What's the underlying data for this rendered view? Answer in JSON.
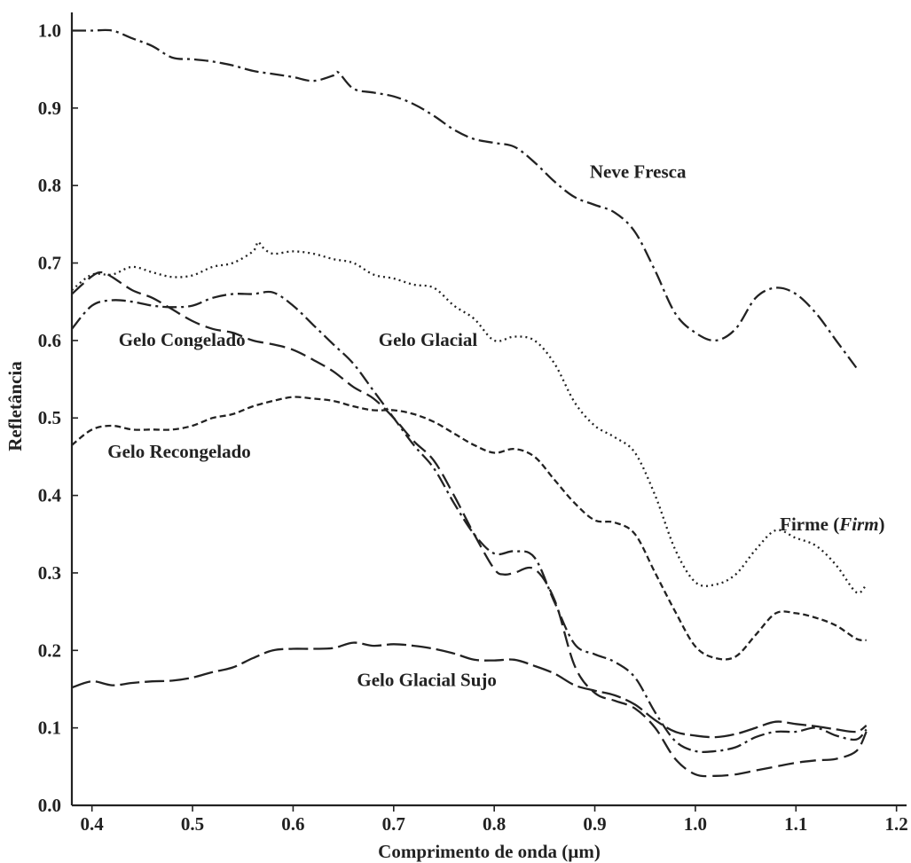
{
  "chart_data": {
    "type": "line",
    "title": "",
    "xlabel": "Comprimento de onda  (µm)",
    "ylabel": "Refletância",
    "xlim": [
      0.38,
      1.21
    ],
    "ylim": [
      0.0,
      1.02
    ],
    "x_ticks": [
      0.4,
      0.5,
      0.6,
      0.7,
      0.8,
      0.9,
      1.0,
      1.1,
      1.2
    ],
    "x_tick_labels": [
      "0.4",
      "0.5",
      "0.6",
      "0.7",
      "0.8",
      "0.9",
      "1.0",
      "1.1",
      "1.2"
    ],
    "y_ticks": [
      0.0,
      0.1,
      0.2,
      0.3,
      0.4,
      0.5,
      0.6,
      0.7,
      0.8,
      0.9,
      1.0
    ],
    "y_tick_labels": [
      "0.0",
      "0.1",
      "0.2",
      "0.3",
      "0.4",
      "0.5",
      "0.6",
      "0.7",
      "0.8",
      "0.9",
      "1.0"
    ],
    "grid": false,
    "legend": "none (inline labels)",
    "series": [
      {
        "name": "Neve Fresca",
        "label_text": "Neve Fresca",
        "label_pos": [
          0.895,
          0.81
        ],
        "dash": "16 5 3 5",
        "x": [
          0.38,
          0.4,
          0.42,
          0.44,
          0.46,
          0.48,
          0.5,
          0.52,
          0.54,
          0.56,
          0.58,
          0.6,
          0.62,
          0.64,
          0.645,
          0.66,
          0.68,
          0.7,
          0.72,
          0.74,
          0.76,
          0.78,
          0.8,
          0.82,
          0.84,
          0.86,
          0.88,
          0.9,
          0.92,
          0.94,
          0.96,
          0.98,
          1.0,
          1.02,
          1.04,
          1.06,
          1.08,
          1.1,
          1.12,
          1.14,
          1.16
        ],
        "y": [
          1.0,
          1.0,
          1.0,
          0.99,
          0.98,
          0.965,
          0.963,
          0.96,
          0.955,
          0.948,
          0.944,
          0.94,
          0.935,
          0.942,
          0.946,
          0.925,
          0.92,
          0.915,
          0.905,
          0.89,
          0.872,
          0.86,
          0.855,
          0.85,
          0.83,
          0.805,
          0.785,
          0.775,
          0.765,
          0.74,
          0.69,
          0.635,
          0.61,
          0.6,
          0.615,
          0.655,
          0.668,
          0.66,
          0.635,
          0.6,
          0.565
        ]
      },
      {
        "name": "Firme (Firm)",
        "label_text": "Firme (",
        "label_italic": "Firm",
        "label_end": ")",
        "label_pos": [
          1.084,
          0.355
        ],
        "dash": "2 4",
        "x": [
          0.38,
          0.4,
          0.42,
          0.44,
          0.46,
          0.48,
          0.5,
          0.52,
          0.54,
          0.56,
          0.565,
          0.57,
          0.58,
          0.6,
          0.62,
          0.64,
          0.66,
          0.68,
          0.7,
          0.72,
          0.74,
          0.76,
          0.78,
          0.8,
          0.82,
          0.84,
          0.86,
          0.88,
          0.9,
          0.92,
          0.94,
          0.96,
          0.98,
          1.0,
          1.02,
          1.04,
          1.06,
          1.08,
          1.1,
          1.12,
          1.14,
          1.16,
          1.17
        ],
        "y": [
          0.665,
          0.685,
          0.685,
          0.695,
          0.688,
          0.682,
          0.684,
          0.695,
          0.7,
          0.715,
          0.727,
          0.72,
          0.712,
          0.715,
          0.712,
          0.705,
          0.7,
          0.685,
          0.68,
          0.672,
          0.668,
          0.645,
          0.628,
          0.6,
          0.605,
          0.6,
          0.57,
          0.52,
          0.49,
          0.475,
          0.455,
          0.4,
          0.33,
          0.288,
          0.285,
          0.298,
          0.33,
          0.355,
          0.345,
          0.335,
          0.31,
          0.275,
          0.285
        ]
      },
      {
        "name": "Gelo Glacial",
        "label_text": "Gelo Glacial",
        "label_pos": [
          0.685,
          0.593
        ],
        "dash": "16 5 3 5",
        "x": [
          0.38,
          0.4,
          0.42,
          0.44,
          0.46,
          0.48,
          0.5,
          0.52,
          0.54,
          0.56,
          0.58,
          0.6,
          0.62,
          0.64,
          0.66,
          0.68,
          0.7,
          0.72,
          0.74,
          0.76,
          0.78,
          0.8,
          0.82,
          0.84,
          0.86,
          0.88,
          0.9,
          0.92,
          0.94,
          0.96,
          0.98,
          1.0,
          1.02,
          1.04,
          1.06,
          1.08,
          1.1,
          1.12,
          1.14,
          1.16,
          1.17
        ],
        "y": [
          0.615,
          0.645,
          0.652,
          0.65,
          0.645,
          0.643,
          0.645,
          0.655,
          0.66,
          0.66,
          0.662,
          0.645,
          0.62,
          0.595,
          0.57,
          0.535,
          0.5,
          0.465,
          0.435,
          0.39,
          0.35,
          0.325,
          0.328,
          0.32,
          0.262,
          0.208,
          0.195,
          0.185,
          0.165,
          0.12,
          0.083,
          0.07,
          0.07,
          0.075,
          0.088,
          0.095,
          0.095,
          0.1,
          0.09,
          0.085,
          0.098
        ]
      },
      {
        "name": "Gelo Congelado",
        "label_text": "Gelo Congelado",
        "label_pos": [
          0.4265,
          0.593
        ],
        "dash": "18 7",
        "x": [
          0.38,
          0.4,
          0.41,
          0.42,
          0.44,
          0.46,
          0.48,
          0.5,
          0.52,
          0.54,
          0.56,
          0.58,
          0.6,
          0.62,
          0.64,
          0.66,
          0.68,
          0.7,
          0.72,
          0.74,
          0.76,
          0.78,
          0.8,
          0.81,
          0.82,
          0.84,
          0.86,
          0.88,
          0.9,
          0.92,
          0.94,
          0.96,
          0.98,
          1.0,
          1.02,
          1.04,
          1.06,
          1.08,
          1.1,
          1.12,
          1.14,
          1.16,
          1.17
        ],
        "y": [
          0.66,
          0.683,
          0.688,
          0.682,
          0.665,
          0.655,
          0.64,
          0.625,
          0.615,
          0.61,
          0.6,
          0.595,
          0.588,
          0.575,
          0.56,
          0.54,
          0.525,
          0.5,
          0.47,
          0.445,
          0.4,
          0.35,
          0.305,
          0.298,
          0.3,
          0.305,
          0.265,
          0.18,
          0.145,
          0.135,
          0.125,
          0.1,
          0.06,
          0.04,
          0.038,
          0.04,
          0.045,
          0.05,
          0.055,
          0.058,
          0.06,
          0.07,
          0.095
        ]
      },
      {
        "name": "Gelo Recongelado",
        "label_text": "Gelo Recongelado",
        "label_pos": [
          0.4155,
          0.449
        ],
        "dash": "7 4",
        "x": [
          0.38,
          0.4,
          0.42,
          0.44,
          0.46,
          0.48,
          0.5,
          0.52,
          0.54,
          0.56,
          0.58,
          0.6,
          0.62,
          0.64,
          0.66,
          0.68,
          0.7,
          0.72,
          0.74,
          0.76,
          0.78,
          0.8,
          0.82,
          0.84,
          0.86,
          0.88,
          0.9,
          0.92,
          0.94,
          0.96,
          0.98,
          1.0,
          1.02,
          1.04,
          1.06,
          1.08,
          1.1,
          1.12,
          1.14,
          1.16,
          1.17
        ],
        "y": [
          0.465,
          0.485,
          0.49,
          0.485,
          0.485,
          0.485,
          0.49,
          0.5,
          0.505,
          0.515,
          0.522,
          0.527,
          0.525,
          0.522,
          0.515,
          0.51,
          0.51,
          0.505,
          0.495,
          0.48,
          0.465,
          0.455,
          0.46,
          0.45,
          0.42,
          0.39,
          0.368,
          0.365,
          0.35,
          0.3,
          0.25,
          0.205,
          0.19,
          0.192,
          0.22,
          0.248,
          0.248,
          0.242,
          0.232,
          0.215,
          0.213
        ]
      },
      {
        "name": "Gelo Glacial Sujo",
        "label_text": "Gelo Glacial Sujo",
        "label_pos": [
          0.6635,
          0.154
        ],
        "dash": "22 6",
        "x": [
          0.38,
          0.4,
          0.42,
          0.44,
          0.46,
          0.48,
          0.5,
          0.52,
          0.54,
          0.56,
          0.58,
          0.6,
          0.62,
          0.64,
          0.66,
          0.68,
          0.7,
          0.72,
          0.74,
          0.76,
          0.78,
          0.8,
          0.82,
          0.84,
          0.86,
          0.88,
          0.9,
          0.92,
          0.94,
          0.96,
          0.98,
          1.0,
          1.02,
          1.04,
          1.06,
          1.08,
          1.1,
          1.12,
          1.14,
          1.16,
          1.17
        ],
        "y": [
          0.152,
          0.16,
          0.155,
          0.158,
          0.16,
          0.161,
          0.165,
          0.172,
          0.178,
          0.19,
          0.2,
          0.202,
          0.202,
          0.203,
          0.21,
          0.206,
          0.208,
          0.206,
          0.202,
          0.196,
          0.188,
          0.187,
          0.188,
          0.18,
          0.17,
          0.155,
          0.148,
          0.142,
          0.13,
          0.11,
          0.095,
          0.09,
          0.088,
          0.092,
          0.1,
          0.108,
          0.105,
          0.102,
          0.098,
          0.095,
          0.103
        ]
      }
    ]
  }
}
